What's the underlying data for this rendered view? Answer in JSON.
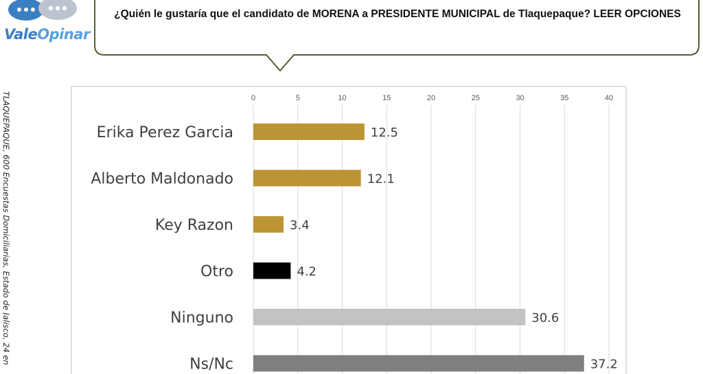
{
  "logo": {
    "text_a": "Vale",
    "text_b": "Opinar"
  },
  "question": "¿Quién le gustaría que el candidato de MORENA a PRESIDENTE MUNICIPAL de Tlaquepaque? LEER OPCIONES",
  "side_note": "TLAQUEPAQUE, 600 Encuestas Domiciliarias, Estado de Jalisco,  24 en",
  "colors": {
    "gold": "#bd9434",
    "black": "#000000",
    "light_gray": "#c3c3c3",
    "dark_gray": "#7f7f7f",
    "bubble_border": "#4f5f35"
  },
  "chart_data": {
    "type": "bar",
    "orientation": "horizontal",
    "title": "",
    "xlabel": "",
    "ylabel": "",
    "xlim": [
      0,
      40
    ],
    "ticks": [
      0,
      5,
      10,
      15,
      20,
      25,
      30,
      35,
      40
    ],
    "tick_labels": [
      "0",
      "5",
      "10",
      "15",
      "20",
      "25",
      "30",
      "35",
      "40"
    ],
    "grid": true,
    "legend": "none",
    "categories": [
      "Erika Perez Garcia",
      "Alberto Maldonado",
      "Key Razon",
      "Otro",
      "Ninguno",
      "Ns/Nc"
    ],
    "values": [
      12.5,
      12.1,
      3.4,
      4.2,
      30.6,
      37.2
    ],
    "value_labels": [
      "12.5",
      "12.1",
      "3.4",
      "4.2",
      "30.6",
      "37.2"
    ],
    "bar_colors": [
      "#bd9434",
      "#bd9434",
      "#bd9434",
      "#000000",
      "#c3c3c3",
      "#7f7f7f"
    ]
  }
}
